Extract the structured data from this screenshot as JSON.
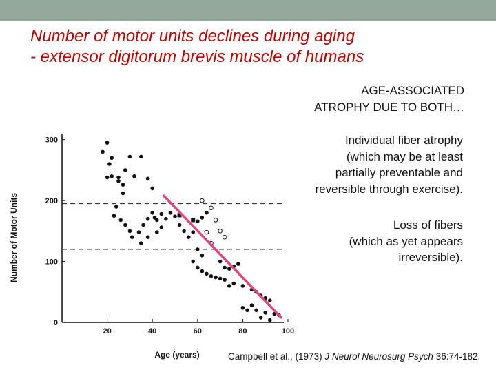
{
  "slide": {
    "title_lines": [
      "Number of motor units declines during aging",
      "- extensor digitorum brevis muscle of humans"
    ],
    "atrophy_lines": [
      "AGE-ASSOCIATED",
      "ATROPHY DUE TO BOTH…"
    ],
    "fiber_lines": [
      "Individual fiber atrophy",
      "(which may be at least",
      "partially preventable and",
      "reversible through exercise)."
    ],
    "loss_lines": [
      "Loss of fibers",
      "(which as yet appears",
      "irreversible)."
    ],
    "citation": {
      "authors": "Campbell et al., (1973)",
      "journal": "J Neurol Neurosurg Psych",
      "ref": "36:74-182."
    },
    "colors": {
      "topbar": "#94a89b",
      "title": "#c00000",
      "trend_line": "#e0457b"
    }
  },
  "chart_data": {
    "type": "scatter",
    "xlabel": "Age (years)",
    "ylabel": "Number of Motor Units",
    "xlim": [
      0,
      100
    ],
    "ylim": [
      0,
      320
    ],
    "x_ticks": [
      20,
      40,
      60,
      80,
      100
    ],
    "y_ticks": [
      0,
      100,
      200,
      300
    ],
    "reference_lines": [
      195,
      120
    ],
    "trend_line": {
      "from": [
        45,
        208
      ],
      "to": [
        97,
        8
      ]
    },
    "points_filled": [
      [
        20,
        295
      ],
      [
        22,
        270
      ],
      [
        20,
        238
      ],
      [
        25,
        238
      ],
      [
        18,
        280
      ],
      [
        21,
        260
      ],
      [
        22,
        240
      ],
      [
        25,
        232
      ],
      [
        27,
        226
      ],
      [
        30,
        272
      ],
      [
        32,
        240
      ],
      [
        35,
        272
      ],
      [
        38,
        236
      ],
      [
        40,
        220
      ],
      [
        28,
        250
      ],
      [
        24,
        190
      ],
      [
        27,
        212
      ],
      [
        23,
        175
      ],
      [
        26,
        168
      ],
      [
        28,
        160
      ],
      [
        30,
        150
      ],
      [
        31,
        140
      ],
      [
        34,
        148
      ],
      [
        36,
        160
      ],
      [
        38,
        170
      ],
      [
        40,
        180
      ],
      [
        42,
        168
      ],
      [
        44,
        178
      ],
      [
        46,
        170
      ],
      [
        35,
        130
      ],
      [
        38,
        140
      ],
      [
        42,
        148
      ],
      [
        44,
        156
      ],
      [
        41,
        172
      ],
      [
        48,
        180
      ],
      [
        50,
        174
      ],
      [
        52,
        160
      ],
      [
        54,
        150
      ],
      [
        56,
        140
      ],
      [
        58,
        148
      ],
      [
        60,
        166
      ],
      [
        62,
        172
      ],
      [
        64,
        180
      ],
      [
        60,
        120
      ],
      [
        62,
        110
      ],
      [
        58,
        100
      ],
      [
        60,
        90
      ],
      [
        62,
        84
      ],
      [
        64,
        80
      ],
      [
        66,
        76
      ],
      [
        68,
        74
      ],
      [
        70,
        72
      ],
      [
        72,
        70
      ],
      [
        74,
        88
      ],
      [
        76,
        92
      ],
      [
        78,
        96
      ],
      [
        70,
        100
      ],
      [
        72,
        90
      ],
      [
        74,
        60
      ],
      [
        76,
        64
      ],
      [
        80,
        60
      ],
      [
        84,
        54
      ],
      [
        86,
        50
      ],
      [
        88,
        44
      ],
      [
        90,
        40
      ],
      [
        92,
        36
      ],
      [
        86,
        20
      ],
      [
        90,
        16
      ],
      [
        94,
        14
      ],
      [
        96,
        12
      ],
      [
        88,
        8
      ],
      [
        92,
        4
      ],
      [
        80,
        24
      ],
      [
        82,
        20
      ],
      [
        84,
        28
      ]
    ],
    "points_open": [
      [
        62,
        200
      ],
      [
        66,
        188
      ],
      [
        68,
        168
      ],
      [
        70,
        150
      ],
      [
        72,
        140
      ],
      [
        64,
        148
      ],
      [
        66,
        130
      ]
    ],
    "points_square": [
      [
        52,
        176
      ],
      [
        58,
        168
      ]
    ]
  }
}
